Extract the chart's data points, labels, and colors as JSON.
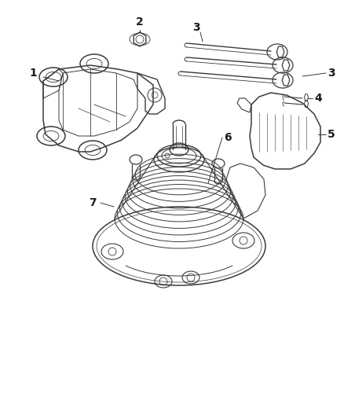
{
  "background_color": "#ffffff",
  "line_color": "#3a3a3a",
  "label_color": "#1a1a1a",
  "label_fontsize": 10,
  "fig_width": 4.38,
  "fig_height": 5.33,
  "dpi": 100
}
